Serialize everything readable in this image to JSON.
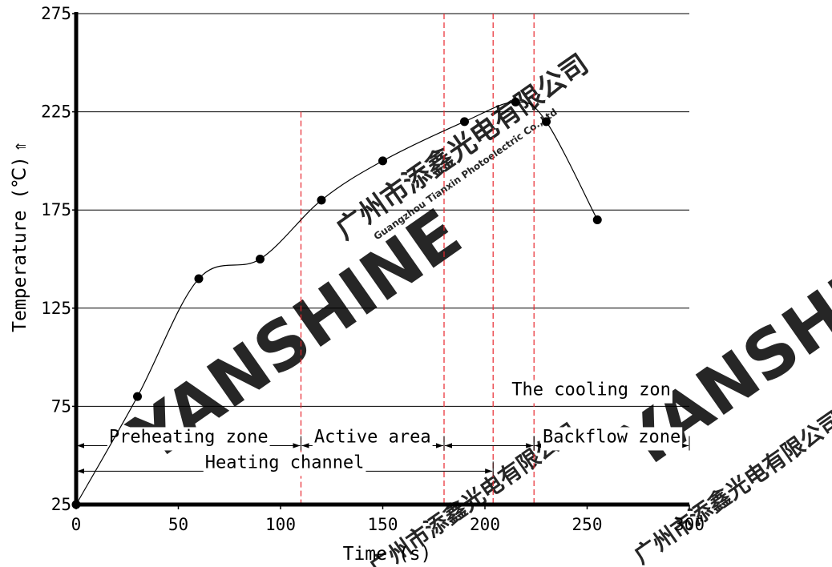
{
  "chart_data": {
    "type": "line",
    "xlabel": "Time (s)",
    "ylabel": "Temperature (℃)",
    "ylabel_arrow": "⇑",
    "xlim": [
      0,
      300
    ],
    "ylim": [
      25,
      275
    ],
    "xticks": [
      0,
      50,
      100,
      150,
      200,
      250,
      300
    ],
    "yticks": [
      25,
      75,
      125,
      175,
      225,
      275
    ],
    "grid": "horizontal",
    "series": [
      {
        "x": [
          0,
          30,
          60,
          90,
          120,
          150,
          190,
          215,
          230,
          255
        ],
        "y": [
          25,
          80,
          140,
          150,
          180,
          200,
          220,
          230,
          220,
          170
        ],
        "markers": true,
        "smooth": true,
        "color": "#000000"
      }
    ],
    "boundary_lines": {
      "color": "#e8262d",
      "style": "dashed",
      "x": [
        0,
        110,
        180,
        204,
        224
      ]
    },
    "zones": [
      {
        "label": "Preheating zone",
        "x_start": 0,
        "x_end": 110,
        "y": 55
      },
      {
        "label": "Active area",
        "x_start": 110,
        "x_end": 180,
        "y": 55
      },
      {
        "label": "",
        "x_start": 180,
        "x_end": 224,
        "y": 55
      },
      {
        "label": "Backflow zone",
        "x_start": 224,
        "x_end": 300,
        "y": 55
      },
      {
        "label": "Heating channel",
        "x_start": 0,
        "x_end": 204,
        "y": 42
      },
      {
        "label": "The cooling zon",
        "x_start": 224,
        "x_end": 280,
        "y": 79
      }
    ]
  },
  "watermark": {
    "brand": "YANSHINE",
    "company_cn": "广州市添鑫光电有限公司",
    "company_en": "Guangzhou Tianxin Photoelectric Co.,Ltd",
    "color": "#d4d4d4"
  }
}
